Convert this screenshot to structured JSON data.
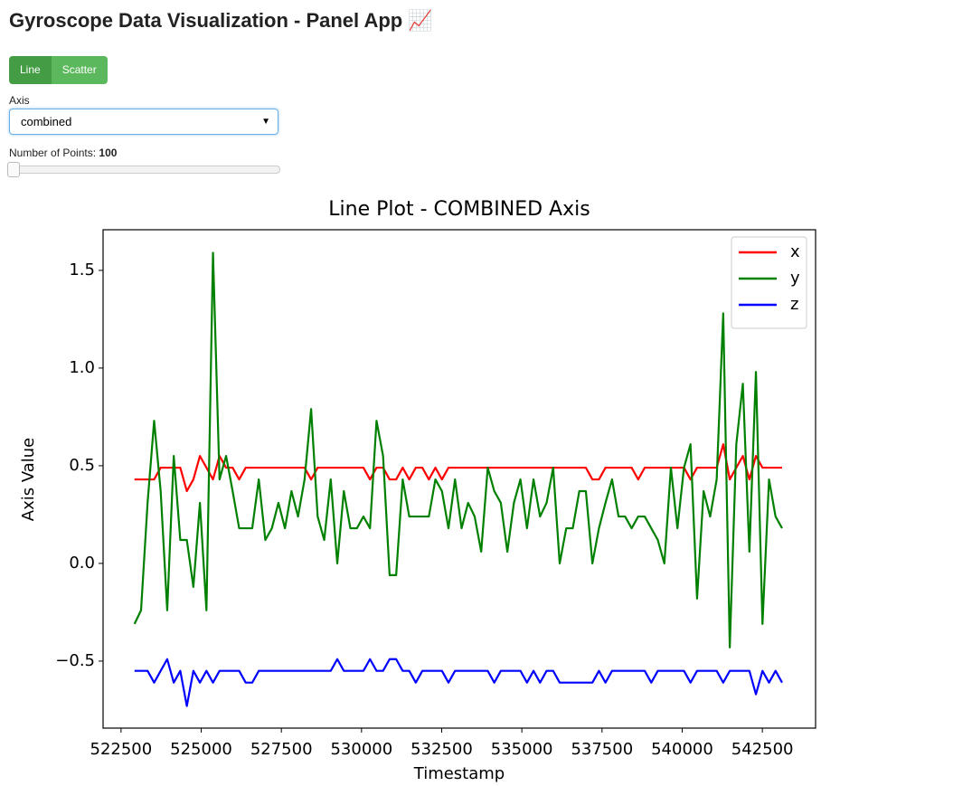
{
  "header": {
    "title": "Gyroscope Data Visualization - Panel App 📈"
  },
  "controls": {
    "plot_type": {
      "options": [
        "Line",
        "Scatter"
      ]
    },
    "axis": {
      "label": "Axis",
      "value": "combined"
    },
    "points": {
      "label": "Number of Points:",
      "value": 100
    }
  },
  "chart_data": {
    "type": "line",
    "title": "Line Plot - COMBINED Axis",
    "x_label": "Timestamp",
    "y_label": "Axis Value",
    "x": [
      522920,
      523124,
      523328,
      523532,
      523736,
      523940,
      524144,
      524348,
      524552,
      524756,
      524960,
      525164,
      525368,
      525572,
      525776,
      525980,
      526184,
      526388,
      526592,
      526796,
      527000,
      527204,
      527408,
      527612,
      527816,
      528020,
      528224,
      528428,
      528632,
      528836,
      529040,
      529244,
      529448,
      529652,
      529856,
      530060,
      530264,
      530468,
      530672,
      530876,
      531080,
      531284,
      531488,
      531692,
      531896,
      532100,
      532304,
      532508,
      532712,
      532916,
      533120,
      533324,
      533528,
      533732,
      533936,
      534140,
      534344,
      534548,
      534752,
      534956,
      535160,
      535364,
      535568,
      535772,
      535976,
      536180,
      536384,
      536588,
      536792,
      536996,
      537200,
      537404,
      537608,
      537812,
      538016,
      538220,
      538424,
      538628,
      538832,
      539036,
      539240,
      539444,
      539648,
      539852,
      540056,
      540260,
      540464,
      540668,
      540872,
      541076,
      541280,
      541484,
      541688,
      541892,
      542096,
      542300,
      542504,
      542708,
      542912,
      543116
    ],
    "series": [
      {
        "name": "x",
        "color": "#ff0000",
        "values": [
          0.43,
          0.43,
          0.43,
          0.43,
          0.49,
          0.49,
          0.49,
          0.49,
          0.37,
          0.43,
          0.55,
          0.49,
          0.43,
          0.55,
          0.49,
          0.49,
          0.43,
          0.49,
          0.49,
          0.49,
          0.49,
          0.49,
          0.49,
          0.49,
          0.49,
          0.49,
          0.49,
          0.43,
          0.49,
          0.49,
          0.49,
          0.49,
          0.49,
          0.49,
          0.49,
          0.49,
          0.43,
          0.49,
          0.49,
          0.43,
          0.43,
          0.49,
          0.43,
          0.49,
          0.49,
          0.43,
          0.49,
          0.43,
          0.49,
          0.49,
          0.49,
          0.49,
          0.49,
          0.49,
          0.49,
          0.49,
          0.49,
          0.49,
          0.49,
          0.49,
          0.49,
          0.49,
          0.49,
          0.49,
          0.49,
          0.49,
          0.49,
          0.49,
          0.49,
          0.49,
          0.43,
          0.43,
          0.49,
          0.49,
          0.49,
          0.49,
          0.49,
          0.43,
          0.49,
          0.49,
          0.49,
          0.49,
          0.49,
          0.49,
          0.49,
          0.43,
          0.49,
          0.49,
          0.49,
          0.49,
          0.61,
          0.43,
          0.49,
          0.55,
          0.43,
          0.55,
          0.49,
          0.49,
          0.49,
          0.49
        ]
      },
      {
        "name": "y",
        "color": "#008000",
        "values": [
          -0.31,
          -0.24,
          0.31,
          0.73,
          0.37,
          -0.24,
          0.55,
          0.12,
          0.12,
          -0.12,
          0.31,
          -0.24,
          1.59,
          0.43,
          0.55,
          0.37,
          0.18,
          0.18,
          0.18,
          0.43,
          0.12,
          0.18,
          0.31,
          0.18,
          0.37,
          0.24,
          0.43,
          0.79,
          0.24,
          0.12,
          0.43,
          0.0,
          0.37,
          0.18,
          0.18,
          0.24,
          0.18,
          0.73,
          0.55,
          -0.06,
          -0.06,
          0.43,
          0.24,
          0.24,
          0.24,
          0.24,
          0.43,
          0.37,
          0.18,
          0.43,
          0.18,
          0.31,
          0.24,
          0.06,
          0.49,
          0.37,
          0.31,
          0.06,
          0.31,
          0.43,
          0.18,
          0.43,
          0.24,
          0.31,
          0.49,
          0.0,
          0.18,
          0.18,
          0.37,
          0.37,
          0.0,
          0.18,
          0.31,
          0.43,
          0.24,
          0.24,
          0.18,
          0.24,
          0.24,
          0.18,
          0.12,
          0.0,
          0.49,
          0.18,
          0.49,
          0.61,
          -0.18,
          0.37,
          0.24,
          0.43,
          1.28,
          -0.43,
          0.61,
          0.92,
          0.06,
          0.98,
          -0.31,
          0.43,
          0.24,
          0.18
        ]
      },
      {
        "name": "z",
        "color": "#0000ff",
        "values": [
          -0.55,
          -0.55,
          -0.55,
          -0.61,
          -0.55,
          -0.49,
          -0.61,
          -0.55,
          -0.73,
          -0.55,
          -0.61,
          -0.55,
          -0.61,
          -0.55,
          -0.55,
          -0.55,
          -0.55,
          -0.61,
          -0.61,
          -0.55,
          -0.55,
          -0.55,
          -0.55,
          -0.55,
          -0.55,
          -0.55,
          -0.55,
          -0.55,
          -0.55,
          -0.55,
          -0.55,
          -0.49,
          -0.55,
          -0.55,
          -0.55,
          -0.55,
          -0.49,
          -0.55,
          -0.55,
          -0.49,
          -0.49,
          -0.55,
          -0.55,
          -0.61,
          -0.55,
          -0.55,
          -0.55,
          -0.55,
          -0.61,
          -0.55,
          -0.55,
          -0.55,
          -0.55,
          -0.55,
          -0.55,
          -0.61,
          -0.55,
          -0.55,
          -0.55,
          -0.55,
          -0.61,
          -0.55,
          -0.61,
          -0.55,
          -0.55,
          -0.61,
          -0.61,
          -0.61,
          -0.61,
          -0.61,
          -0.61,
          -0.55,
          -0.61,
          -0.55,
          -0.55,
          -0.55,
          -0.55,
          -0.55,
          -0.55,
          -0.61,
          -0.55,
          -0.55,
          -0.55,
          -0.55,
          -0.55,
          -0.61,
          -0.55,
          -0.55,
          -0.55,
          -0.55,
          -0.61,
          -0.55,
          -0.55,
          -0.55,
          -0.55,
          -0.67,
          -0.55,
          -0.61,
          -0.55,
          -0.61
        ]
      }
    ],
    "xlim": [
      521940,
      544160
    ],
    "ylim": [
      -0.843,
      1.708
    ],
    "xticks": [
      522500,
      525000,
      527500,
      530000,
      532500,
      535000,
      537500,
      540000,
      542500
    ],
    "yticks": [
      {
        "value": -0.5,
        "label": "−0.5"
      },
      {
        "value": 0,
        "label": "0.0"
      },
      0.5,
      {
        "value": 1,
        "label": "1.0"
      },
      1.5
    ],
    "legend": "upper right"
  }
}
